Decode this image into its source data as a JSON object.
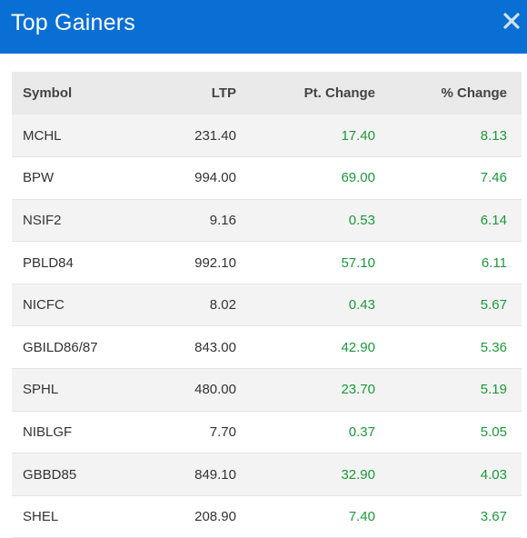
{
  "header": {
    "title": "Top Gainers",
    "close_icon": "close-icon"
  },
  "table": {
    "columns": [
      "Symbol",
      "LTP",
      "Pt. Change",
      "% Change"
    ],
    "rows": [
      {
        "symbol": "MCHL",
        "ltp": "231.40",
        "pt_change": "17.40",
        "pct_change": "8.13"
      },
      {
        "symbol": "BPW",
        "ltp": "994.00",
        "pt_change": "69.00",
        "pct_change": "7.46"
      },
      {
        "symbol": "NSIF2",
        "ltp": "9.16",
        "pt_change": "0.53",
        "pct_change": "6.14"
      },
      {
        "symbol": "PBLD84",
        "ltp": "992.10",
        "pt_change": "57.10",
        "pct_change": "6.11"
      },
      {
        "symbol": "NICFC",
        "ltp": "8.02",
        "pt_change": "0.43",
        "pct_change": "5.67"
      },
      {
        "symbol": "GBILD86/87",
        "ltp": "843.00",
        "pt_change": "42.90",
        "pct_change": "5.36"
      },
      {
        "symbol": "SPHL",
        "ltp": "480.00",
        "pt_change": "23.70",
        "pct_change": "5.19"
      },
      {
        "symbol": "NIBLGF",
        "ltp": "7.70",
        "pt_change": "0.37",
        "pct_change": "5.05"
      },
      {
        "symbol": "GBBD85",
        "ltp": "849.10",
        "pt_change": "32.90",
        "pct_change": "4.03"
      },
      {
        "symbol": "SHEL",
        "ltp": "208.90",
        "pt_change": "7.40",
        "pct_change": "3.67"
      }
    ]
  },
  "colors": {
    "header_bg": "#0a6fd4",
    "positive": "#1a9a3a",
    "header_row_bg": "#eaeaea",
    "odd_row_bg": "#f3f3f3"
  }
}
